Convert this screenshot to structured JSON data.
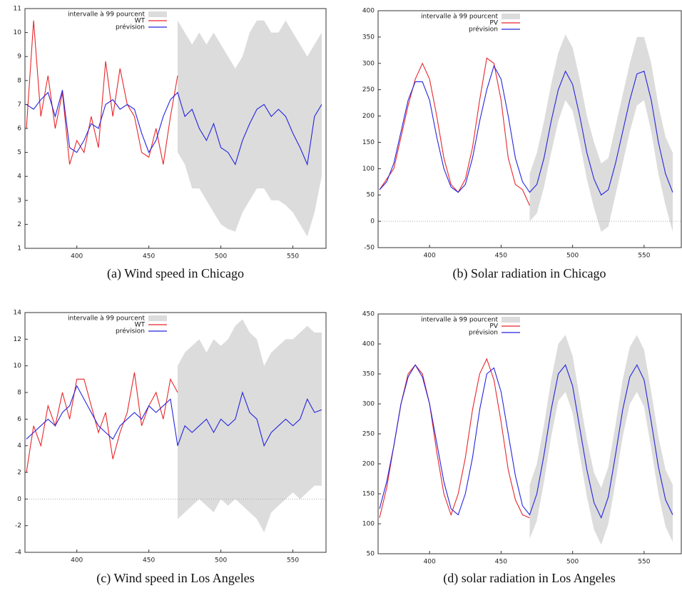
{
  "chart_data": [
    {
      "type": "line",
      "caption": "(a) Wind speed in Chicago",
      "xlim": [
        364,
        573
      ],
      "ylim": [
        1,
        11
      ],
      "xticks": [
        400,
        450,
        500,
        550
      ],
      "yticks": [
        1,
        2,
        3,
        4,
        5,
        6,
        7,
        8,
        9,
        10,
        11
      ],
      "series": [
        {
          "name": "intervalle à 99 pourcent",
          "color": "#dcdcdc",
          "x": [
            470,
            475,
            480,
            485,
            490,
            495,
            500,
            505,
            510,
            515,
            520,
            525,
            530,
            535,
            540,
            545,
            550,
            555,
            560,
            565,
            570
          ],
          "lower": [
            5,
            4.5,
            3.5,
            3.5,
            3,
            2.5,
            2,
            1.8,
            1.7,
            2.5,
            3,
            3.5,
            3.5,
            3,
            3,
            2.8,
            2.5,
            2,
            1.5,
            2.5,
            4
          ],
          "upper": [
            10.5,
            10,
            9.5,
            10,
            9.5,
            10,
            9.5,
            9,
            8.5,
            9,
            10,
            10.5,
            10.5,
            10,
            10,
            10.5,
            10,
            9.5,
            9,
            9.5,
            10
          ]
        },
        {
          "name": "WT",
          "color": "#e8262a",
          "x": [
            365,
            370,
            375,
            380,
            385,
            390,
            395,
            400,
            405,
            410,
            415,
            420,
            425,
            430,
            435,
            440,
            445,
            450,
            455,
            460,
            465,
            470
          ],
          "values": [
            6,
            10.5,
            6.5,
            8.2,
            6,
            7.5,
            4.5,
            5.5,
            5,
            6.5,
            5.2,
            8.8,
            6.5,
            8.5,
            7,
            6.5,
            5,
            4.8,
            6,
            4.5,
            6.5,
            8.2
          ]
        },
        {
          "name": "prévision",
          "color": "#2424e0",
          "x": [
            365,
            370,
            375,
            380,
            385,
            390,
            395,
            400,
            405,
            410,
            415,
            420,
            425,
            430,
            435,
            440,
            445,
            450,
            455,
            460,
            465,
            470,
            475,
            480,
            485,
            490,
            495,
            500,
            505,
            510,
            515,
            520,
            525,
            530,
            535,
            540,
            545,
            550,
            555,
            560,
            565,
            570
          ],
          "values": [
            7,
            6.8,
            7.2,
            7.5,
            6.5,
            7.6,
            5.2,
            5,
            5.5,
            6.2,
            6,
            7,
            7.2,
            6.8,
            7,
            6.8,
            5.8,
            5,
            5.5,
            6.5,
            7.2,
            7.5,
            6.5,
            6.8,
            6,
            5.5,
            6.2,
            5.2,
            5,
            4.5,
            5.5,
            6.2,
            6.8,
            7,
            6.5,
            6.8,
            6.5,
            5.8,
            5.2,
            4.5,
            6.5,
            7
          ]
        }
      ]
    },
    {
      "type": "line",
      "caption": "(b) Solar radiation in Chicago",
      "xlim": [
        364,
        576
      ],
      "ylim": [
        -50,
        400
      ],
      "xticks": [
        400,
        450,
        500,
        550
      ],
      "yticks": [
        -50,
        0,
        50,
        100,
        150,
        200,
        250,
        300,
        350,
        400
      ],
      "zero_line": true,
      "series": [
        {
          "name": "intervalle à 99 pourcent",
          "color": "#dcdcdc",
          "x": [
            470,
            475,
            480,
            485,
            490,
            495,
            500,
            505,
            510,
            515,
            520,
            525,
            530,
            535,
            540,
            545,
            550,
            555,
            560,
            565,
            570
          ],
          "lower": [
            0,
            15,
            65,
            130,
            190,
            230,
            210,
            150,
            80,
            25,
            -20,
            -10,
            50,
            110,
            170,
            220,
            230,
            170,
            90,
            30,
            -20
          ],
          "upper": [
            90,
            130,
            190,
            260,
            320,
            355,
            330,
            270,
            200,
            150,
            110,
            120,
            180,
            240,
            300,
            350,
            350,
            300,
            220,
            160,
            130
          ]
        },
        {
          "name": "PV",
          "color": "#e8262a",
          "x": [
            365,
            370,
            375,
            380,
            385,
            390,
            395,
            400,
            405,
            410,
            415,
            420,
            425,
            430,
            435,
            440,
            445,
            450,
            455,
            460,
            465,
            470
          ],
          "values": [
            60,
            80,
            100,
            160,
            220,
            270,
            300,
            270,
            200,
            120,
            70,
            55,
            80,
            140,
            230,
            310,
            300,
            230,
            120,
            70,
            60,
            30
          ]
        },
        {
          "name": "prévision",
          "color": "#2424e0",
          "x": [
            365,
            370,
            375,
            380,
            385,
            390,
            395,
            400,
            405,
            410,
            415,
            420,
            425,
            430,
            435,
            440,
            445,
            450,
            455,
            460,
            465,
            470,
            475,
            480,
            485,
            490,
            495,
            500,
            505,
            510,
            515,
            520,
            525,
            530,
            535,
            540,
            545,
            550,
            555,
            560,
            565,
            570
          ],
          "values": [
            60,
            75,
            110,
            170,
            230,
            265,
            265,
            230,
            160,
            100,
            65,
            55,
            70,
            120,
            190,
            250,
            295,
            270,
            200,
            120,
            75,
            55,
            70,
            120,
            190,
            250,
            285,
            260,
            200,
            130,
            80,
            50,
            60,
            110,
            170,
            230,
            280,
            285,
            230,
            150,
            90,
            55
          ]
        }
      ]
    },
    {
      "type": "line",
      "caption": "(c) Wind speed in Los Angeles",
      "xlim": [
        364,
        573
      ],
      "ylim": [
        -4,
        14
      ],
      "xticks": [
        400,
        450,
        500,
        550
      ],
      "yticks": [
        -4,
        -2,
        0,
        2,
        4,
        6,
        8,
        10,
        12,
        14
      ],
      "zero_line": true,
      "series": [
        {
          "name": "intervalle à 99 pourcent",
          "color": "#dcdcdc",
          "x": [
            470,
            475,
            480,
            485,
            490,
            495,
            500,
            505,
            510,
            515,
            520,
            525,
            530,
            535,
            540,
            545,
            550,
            555,
            560,
            565,
            570
          ],
          "lower": [
            -1.5,
            -1,
            -0.5,
            0,
            -0.5,
            -1,
            0,
            -0.5,
            0,
            -0.5,
            -1,
            -1.5,
            -2.5,
            -1,
            -0.5,
            0,
            0.5,
            0,
            0.5,
            1,
            1
          ],
          "upper": [
            10,
            11,
            11.5,
            12,
            11,
            12,
            11.5,
            12,
            13,
            13.5,
            12.5,
            12,
            10,
            11,
            11.5,
            12,
            12,
            12.5,
            13,
            12.5,
            12.5
          ]
        },
        {
          "name": "WT",
          "color": "#e8262a",
          "x": [
            365,
            370,
            375,
            380,
            385,
            390,
            395,
            400,
            405,
            410,
            415,
            420,
            425,
            430,
            435,
            440,
            445,
            450,
            455,
            460,
            465,
            470
          ],
          "values": [
            2,
            5.5,
            4,
            7,
            5.5,
            8,
            6,
            9,
            9,
            7,
            5,
            6.5,
            3,
            5,
            6.5,
            9.5,
            5.5,
            7,
            8,
            6,
            9,
            8
          ]
        },
        {
          "name": "prévision",
          "color": "#2424e0",
          "x": [
            365,
            370,
            375,
            380,
            385,
            390,
            395,
            400,
            405,
            410,
            415,
            420,
            425,
            430,
            435,
            440,
            445,
            450,
            455,
            460,
            465,
            470,
            475,
            480,
            485,
            490,
            495,
            500,
            505,
            510,
            515,
            520,
            525,
            530,
            535,
            540,
            545,
            550,
            555,
            560,
            565,
            570
          ],
          "values": [
            4.5,
            5,
            5.5,
            6,
            5.5,
            6.5,
            7,
            8.5,
            7.5,
            6.5,
            5.5,
            5,
            4.5,
            5.5,
            6,
            6.5,
            6,
            7,
            6.5,
            7,
            7.5,
            4,
            5.5,
            5,
            5.5,
            6,
            5,
            6,
            5.5,
            6,
            8,
            6.5,
            6,
            4,
            5,
            5.5,
            6,
            5.5,
            6,
            7.5,
            6.5,
            6.7
          ]
        }
      ]
    },
    {
      "type": "line",
      "caption": "(d) solar radiation in Los Angeles",
      "xlim": [
        364,
        576
      ],
      "ylim": [
        50,
        450
      ],
      "xticks": [
        400,
        450,
        500,
        550
      ],
      "yticks": [
        50,
        100,
        150,
        200,
        250,
        300,
        350,
        400,
        450
      ],
      "series": [
        {
          "name": "intervalle à 99 pourcent",
          "color": "#dcdcdc",
          "x": [
            470,
            475,
            480,
            485,
            490,
            495,
            500,
            505,
            510,
            515,
            520,
            525,
            530,
            535,
            540,
            545,
            550,
            555,
            560,
            565,
            570
          ],
          "lower": [
            75,
            105,
            170,
            245,
            305,
            320,
            285,
            215,
            145,
            90,
            65,
            100,
            170,
            245,
            300,
            320,
            295,
            225,
            150,
            95,
            70
          ],
          "upper": [
            165,
            200,
            265,
            340,
            400,
            415,
            380,
            310,
            240,
            185,
            160,
            195,
            265,
            340,
            395,
            415,
            390,
            320,
            245,
            190,
            165
          ]
        },
        {
          "name": "PV",
          "color": "#e8262a",
          "x": [
            365,
            370,
            375,
            380,
            385,
            390,
            395,
            400,
            405,
            410,
            415,
            420,
            425,
            430,
            435,
            440,
            445,
            450,
            455,
            460,
            465,
            470
          ],
          "values": [
            110,
            160,
            230,
            300,
            350,
            365,
            350,
            300,
            220,
            150,
            115,
            150,
            210,
            290,
            350,
            375,
            340,
            270,
            190,
            140,
            115,
            110
          ]
        },
        {
          "name": "prévision",
          "color": "#2424e0",
          "x": [
            365,
            370,
            375,
            380,
            385,
            390,
            395,
            400,
            405,
            410,
            415,
            420,
            425,
            430,
            435,
            440,
            445,
            450,
            455,
            460,
            465,
            470,
            475,
            480,
            485,
            490,
            495,
            500,
            505,
            510,
            515,
            520,
            525,
            530,
            535,
            540,
            545,
            550,
            555,
            560,
            565,
            570
          ],
          "values": [
            125,
            170,
            230,
            300,
            345,
            365,
            345,
            300,
            235,
            170,
            125,
            115,
            150,
            210,
            290,
            350,
            360,
            320,
            250,
            180,
            130,
            115,
            150,
            215,
            290,
            350,
            365,
            330,
            260,
            190,
            135,
            110,
            145,
            215,
            290,
            345,
            365,
            340,
            270,
            195,
            140,
            115
          ]
        }
      ]
    }
  ]
}
